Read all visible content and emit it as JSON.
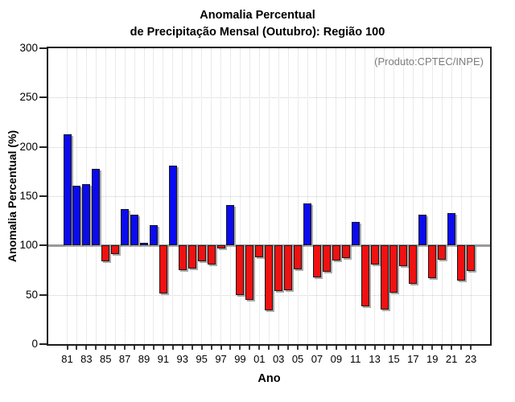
{
  "title": {
    "line1": "Anomalia Percentual",
    "line2": "de Precipitação Mensal (Outubro): Região 100"
  },
  "annotation": "(Produto:CPTEC/INPE)",
  "chart_data": {
    "type": "bar",
    "title": "Anomalia Percentual de Precipitação Mensal (Outubro): Região 100",
    "xlabel": "Ano",
    "ylabel": "Anomalia Percentual (%)",
    "ylim": [
      0,
      300
    ],
    "yticks": [
      0,
      50,
      100,
      150,
      200,
      250,
      300
    ],
    "baseline": 100,
    "grid": "dotted",
    "legend_position": "none",
    "x_tick_labels": [
      "81",
      "83",
      "85",
      "87",
      "89",
      "91",
      "93",
      "95",
      "97",
      "99",
      "01",
      "03",
      "05",
      "07",
      "09",
      "11",
      "13",
      "15",
      "17",
      "19",
      "21",
      "23"
    ],
    "years": [
      1981,
      1982,
      1983,
      1984,
      1985,
      1986,
      1987,
      1988,
      1989,
      1990,
      1991,
      1992,
      1993,
      1994,
      1995,
      1996,
      1997,
      1998,
      1999,
      2000,
      2001,
      2002,
      2003,
      2004,
      2005,
      2006,
      2007,
      2008,
      2009,
      2010,
      2011,
      2012,
      2013,
      2014,
      2015,
      2016,
      2017,
      2018,
      2019,
      2020,
      2021,
      2022,
      2023
    ],
    "values": [
      213,
      161,
      162,
      178,
      84,
      91,
      137,
      131,
      103,
      121,
      51,
      181,
      75,
      77,
      84,
      81,
      97,
      141,
      50,
      45,
      88,
      34,
      54,
      55,
      76,
      143,
      68,
      73,
      85,
      87,
      124,
      38,
      81,
      35,
      52,
      79,
      61,
      131,
      67,
      86,
      133,
      64,
      74
    ],
    "colors": {
      "above_baseline": "#0b0bf0",
      "below_baseline": "#f01111",
      "baseline_line": "#999999",
      "bar_border": "#1a1a1a",
      "annotation_text": "#7c7c7c"
    }
  }
}
